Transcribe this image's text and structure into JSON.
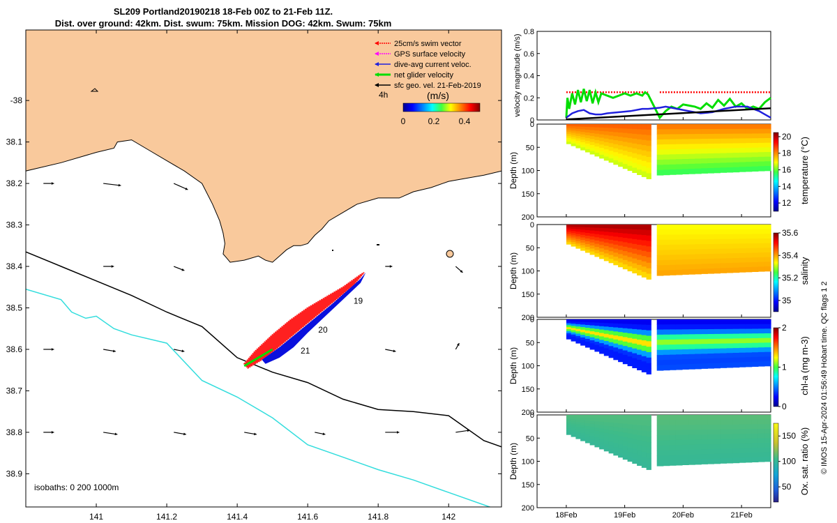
{
  "header": {
    "line1": "SL209 Portland20190218 18-Feb 00Z to 21-Feb 11Z.",
    "line2": "Dist. over ground: 42km. Dist. swum: 75km. Mission DOG: 42km. Swum: 75km"
  },
  "colors": {
    "land": "#f9c99c",
    "coast": "#000000",
    "isobath200": "#000000",
    "isobath1000": "#33dddd",
    "swim": "#ff0000",
    "gps": "#ff00ff",
    "diveavg": "#2020dd",
    "net": "#00dd00",
    "geo": "#000000",
    "track_red": "#ff2020",
    "track_blue": "#0a10dd"
  },
  "chart_data": [
    {
      "type": "map",
      "title": "Glider track map",
      "xlim": [
        140.8,
        142.15
      ],
      "ylim": [
        -38.98,
        -37.83
      ],
      "x_ticks": [
        141,
        141.2,
        141.4,
        141.6,
        141.8,
        142
      ],
      "x_tick_labels": [
        "141",
        "141.2",
        "141.4",
        "141.6",
        "141.8",
        "142"
      ],
      "y_ticks": [
        -38,
        -38.1,
        -38.2,
        -38.3,
        -38.4,
        -38.5,
        -38.6,
        -38.7,
        -38.8,
        -38.9
      ],
      "y_tick_labels": [
        "-38",
        "38.1",
        "38.2",
        "38.3",
        "38.4",
        "38.5",
        "38.6",
        "38.7",
        "38.8",
        "38.9"
      ],
      "legend": [
        {
          "label": "25cm/s swim vector",
          "color_key": "swim"
        },
        {
          "label": "GPS surface velocity",
          "color_key": "gps"
        },
        {
          "label": "dive-avg current veloc.",
          "color_key": "diveavg"
        },
        {
          "label": "net glider velocity",
          "color_key": "net"
        },
        {
          "label": "sfc geo. vel. 21-Feb-2019",
          "color_key": "geo"
        }
      ],
      "colorbar": {
        "prefix": "4h",
        "unit": "(m/s)",
        "ticks": [
          "0",
          "0.2",
          "0.4"
        ],
        "range": [
          0,
          0.5
        ]
      },
      "isobaths_label": "isobaths: 0   200  1000m",
      "day_labels": [
        {
          "text": "19",
          "lon": 141.73,
          "lat": -38.49
        },
        {
          "text": "20",
          "lon": 141.63,
          "lat": -38.56
        },
        {
          "text": "21",
          "lon": 141.58,
          "lat": -38.61
        }
      ],
      "coastline": [
        [
          140.8,
          -38.17
        ],
        [
          140.9,
          -38.15
        ],
        [
          141.0,
          -38.125
        ],
        [
          141.05,
          -38.115
        ],
        [
          141.06,
          -38.1
        ],
        [
          141.1,
          -38.095
        ],
        [
          141.15,
          -38.12
        ],
        [
          141.2,
          -38.145
        ],
        [
          141.25,
          -38.17
        ],
        [
          141.3,
          -38.2
        ],
        [
          141.33,
          -38.25
        ],
        [
          141.35,
          -38.29
        ],
        [
          141.36,
          -38.32
        ],
        [
          141.365,
          -38.345
        ],
        [
          141.36,
          -38.37
        ],
        [
          141.37,
          -38.38
        ],
        [
          141.38,
          -38.39
        ],
        [
          141.42,
          -38.385
        ],
        [
          141.46,
          -38.375
        ],
        [
          141.48,
          -38.385
        ],
        [
          141.5,
          -38.39
        ],
        [
          141.52,
          -38.375
        ],
        [
          141.54,
          -38.36
        ],
        [
          141.56,
          -38.35
        ],
        [
          141.58,
          -38.35
        ],
        [
          141.6,
          -38.345
        ],
        [
          141.62,
          -38.325
        ],
        [
          141.64,
          -38.31
        ],
        [
          141.66,
          -38.29
        ],
        [
          141.7,
          -38.27
        ],
        [
          141.74,
          -38.25
        ],
        [
          141.8,
          -38.235
        ],
        [
          141.86,
          -38.235
        ],
        [
          141.9,
          -38.22
        ],
        [
          141.95,
          -38.21
        ],
        [
          142.0,
          -38.195
        ],
        [
          142.1,
          -38.18
        ],
        [
          142.15,
          -38.17
        ]
      ],
      "isobath_200": [
        [
          140.8,
          -38.365
        ],
        [
          140.9,
          -38.4
        ],
        [
          141.0,
          -38.435
        ],
        [
          141.1,
          -38.47
        ],
        [
          141.2,
          -38.51
        ],
        [
          141.3,
          -38.545
        ],
        [
          141.4,
          -38.62
        ],
        [
          141.5,
          -38.655
        ],
        [
          141.6,
          -38.68
        ],
        [
          141.7,
          -38.72
        ],
        [
          141.8,
          -38.745
        ],
        [
          141.9,
          -38.75
        ],
        [
          142.0,
          -38.76
        ],
        [
          142.1,
          -38.82
        ],
        [
          142.15,
          -38.835
        ]
      ],
      "isobath_1000": [
        [
          140.8,
          -38.455
        ],
        [
          140.9,
          -38.48
        ],
        [
          140.93,
          -38.51
        ],
        [
          140.97,
          -38.525
        ],
        [
          141.0,
          -38.52
        ],
        [
          141.05,
          -38.55
        ],
        [
          141.1,
          -38.565
        ],
        [
          141.2,
          -38.585
        ],
        [
          141.3,
          -38.675
        ],
        [
          141.4,
          -38.715
        ],
        [
          141.5,
          -38.765
        ],
        [
          141.6,
          -38.83
        ],
        [
          141.7,
          -38.86
        ],
        [
          141.8,
          -38.89
        ],
        [
          141.9,
          -38.915
        ],
        [
          142.0,
          -38.945
        ],
        [
          142.1,
          -38.975
        ],
        [
          142.15,
          -38.99
        ]
      ],
      "track_red": [
        [
          141.42,
          -38.635
        ],
        [
          141.45,
          -38.605
        ],
        [
          141.5,
          -38.565
        ],
        [
          141.55,
          -38.53
        ],
        [
          141.6,
          -38.5
        ],
        [
          141.65,
          -38.475
        ],
        [
          141.7,
          -38.45
        ],
        [
          141.75,
          -38.42
        ],
        [
          141.76,
          -38.415
        ],
        [
          141.73,
          -38.445
        ],
        [
          141.68,
          -38.48
        ],
        [
          141.63,
          -38.515
        ],
        [
          141.58,
          -38.55
        ],
        [
          141.53,
          -38.585
        ],
        [
          141.48,
          -38.62
        ],
        [
          141.43,
          -38.645
        ]
      ],
      "track_blue": [
        [
          141.47,
          -38.625
        ],
        [
          141.52,
          -38.595
        ],
        [
          141.57,
          -38.56
        ],
        [
          141.62,
          -38.525
        ],
        [
          141.67,
          -38.49
        ],
        [
          141.71,
          -38.46
        ],
        [
          141.75,
          -38.43
        ],
        [
          141.765,
          -38.415
        ],
        [
          141.75,
          -38.44
        ],
        [
          141.7,
          -38.48
        ],
        [
          141.65,
          -38.52
        ],
        [
          141.6,
          -38.56
        ],
        [
          141.56,
          -38.595
        ],
        [
          141.52,
          -38.62
        ],
        [
          141.48,
          -38.635
        ]
      ],
      "track_green": [
        [
          141.42,
          -38.64
        ],
        [
          141.47,
          -38.615
        ],
        [
          141.5,
          -38.6
        ]
      ],
      "geo_arrows": [
        {
          "lon": 140.85,
          "lat": -38.2,
          "dlon": 0.03,
          "dlat": 0.0
        },
        {
          "lon": 141.02,
          "lat": -38.2,
          "dlon": 0.05,
          "dlat": -0.005
        },
        {
          "lon": 141.22,
          "lat": -38.2,
          "dlon": 0.04,
          "dlat": -0.015
        },
        {
          "lon": 141.02,
          "lat": -38.4,
          "dlon": 0.03,
          "dlat": 0.0
        },
        {
          "lon": 141.22,
          "lat": -38.4,
          "dlon": 0.03,
          "dlat": -0.01
        },
        {
          "lon": 141.82,
          "lat": -38.4,
          "dlon": 0.02,
          "dlat": 0.0
        },
        {
          "lon": 142.02,
          "lat": -38.4,
          "dlon": 0.02,
          "dlat": -0.015
        },
        {
          "lon": 140.85,
          "lat": -38.6,
          "dlon": 0.03,
          "dlat": 0.0
        },
        {
          "lon": 141.02,
          "lat": -38.6,
          "dlon": 0.035,
          "dlat": -0.005
        },
        {
          "lon": 141.22,
          "lat": -38.6,
          "dlon": 0.03,
          "dlat": -0.005
        },
        {
          "lon": 141.82,
          "lat": -38.6,
          "dlon": 0.03,
          "dlat": -0.005
        },
        {
          "lon": 142.02,
          "lat": -38.6,
          "dlon": 0.01,
          "dlat": 0.015
        },
        {
          "lon": 140.85,
          "lat": -38.8,
          "dlon": 0.03,
          "dlat": 0.0
        },
        {
          "lon": 141.02,
          "lat": -38.8,
          "dlon": 0.04,
          "dlat": -0.005
        },
        {
          "lon": 141.22,
          "lat": -38.8,
          "dlon": 0.035,
          "dlat": -0.005
        },
        {
          "lon": 141.42,
          "lat": -38.8,
          "dlon": 0.035,
          "dlat": -0.005
        },
        {
          "lon": 141.62,
          "lat": -38.8,
          "dlon": 0.03,
          "dlat": -0.005
        },
        {
          "lon": 141.82,
          "lat": -38.8,
          "dlon": 0.04,
          "dlat": 0.0
        },
        {
          "lon": 142.02,
          "lat": -38.8,
          "dlon": 0.04,
          "dlat": 0.005
        }
      ]
    },
    {
      "type": "line",
      "ylabel": "velocity magnitude (m/s)",
      "xlim": [
        0,
        4
      ],
      "ylim": [
        0,
        0.8
      ],
      "y_ticks": [
        0,
        0.2,
        0.4,
        0.6,
        0.8
      ],
      "y_tick_labels": [
        "0",
        "0.2",
        "0.4",
        "0.6",
        "0.8"
      ],
      "x_ticks": [
        0.5,
        1.5,
        2.5,
        3.5
      ],
      "x_tick_labels": [
        "18Feb",
        "19Feb",
        "20Feb",
        "21Feb"
      ],
      "series": [
        {
          "name": "swim",
          "color_key": "swim",
          "style": "dotted",
          "x": [
            0.5,
            1.9
          ],
          "y": [
            0.25,
            0.25
          ],
          "x2": [
            2.1,
            4.0
          ],
          "y2": [
            0.25,
            0.25
          ]
        },
        {
          "name": "net glider velocity",
          "color_key": "net",
          "x": [
            0.5,
            0.52,
            0.55,
            0.6,
            0.65,
            0.7,
            0.75,
            0.8,
            0.85,
            0.9,
            0.95,
            1.0,
            1.05,
            1.1,
            1.2,
            1.3,
            1.4,
            1.5,
            1.6,
            1.7,
            1.8,
            1.85,
            1.9,
            2.1,
            2.2,
            2.3,
            2.4,
            2.5,
            2.6,
            2.7,
            2.8,
            2.9,
            3.0,
            3.1,
            3.2,
            3.3,
            3.4,
            3.5,
            3.6,
            3.7,
            3.8,
            3.9,
            4.0
          ],
          "y": [
            0.02,
            0.2,
            0.1,
            0.24,
            0.14,
            0.27,
            0.16,
            0.28,
            0.17,
            0.27,
            0.15,
            0.25,
            0.16,
            0.24,
            0.22,
            0.2,
            0.22,
            0.24,
            0.22,
            0.24,
            0.22,
            0.25,
            0.23,
            0.02,
            0.08,
            0.12,
            0.1,
            0.14,
            0.13,
            0.12,
            0.1,
            0.15,
            0.11,
            0.18,
            0.13,
            0.19,
            0.12,
            0.15,
            0.1,
            0.12,
            0.1,
            0.16,
            0.2
          ]
        },
        {
          "name": "dive-avg current",
          "color_key": "diveavg",
          "x": [
            0.5,
            0.6,
            0.7,
            0.8,
            0.9,
            1.0,
            1.1,
            1.2,
            1.4,
            1.6,
            1.8,
            1.9,
            2.1,
            2.2,
            2.4,
            2.6,
            2.8,
            3.0,
            3.2,
            3.4,
            3.6,
            3.8,
            3.9,
            4.0
          ],
          "y": [
            0.02,
            0.06,
            0.08,
            0.09,
            0.06,
            0.05,
            0.05,
            0.06,
            0.07,
            0.08,
            0.1,
            0.1,
            0.11,
            0.12,
            0.1,
            0.08,
            0.06,
            0.07,
            0.1,
            0.12,
            0.12,
            0.08,
            0.05,
            0.02
          ]
        },
        {
          "name": "sfc geo velocity",
          "color_key": "geo",
          "x": [
            0.5,
            4.0
          ],
          "y": [
            0.005,
            0.105
          ]
        }
      ]
    },
    {
      "type": "heatmap",
      "variable": "temperature",
      "colorbar_label": "temperature (°C)",
      "ylabel": "Depth (m)",
      "ylim": [
        200,
        0
      ],
      "y_ticks": [
        "0",
        "50",
        "100",
        "150",
        "200"
      ],
      "cbar_range": [
        11,
        20.5
      ],
      "cbar_ticks": [
        "12",
        "14",
        "16",
        "18",
        "20"
      ],
      "segment1": {
        "x": [
          0.5,
          1.95
        ],
        "max_depth_start": 40,
        "max_depth_end": 120,
        "surface_value": 18.5,
        "bottom_value": 16.5
      },
      "segment2": {
        "x": [
          2.05,
          4.0
        ],
        "max_depth_start": 110,
        "max_depth_end": 100,
        "surface_value": 18.3,
        "bottom_value": 15.5
      }
    },
    {
      "type": "heatmap",
      "variable": "salinity",
      "colorbar_label": "salinity",
      "ylabel": "Depth (m)",
      "ylim": [
        200,
        0
      ],
      "y_ticks": [
        "0",
        "50",
        "100",
        "150",
        "200"
      ],
      "cbar_range": [
        34.9,
        35.6
      ],
      "cbar_ticks": [
        "35",
        "35.2",
        "35.4",
        "35.6"
      ],
      "segment1": {
        "x": [
          0.5,
          1.95
        ],
        "max_depth_start": 40,
        "max_depth_end": 120,
        "surface_value": 35.58,
        "bottom_value": 35.35
      },
      "segment2": {
        "x": [
          2.05,
          4.0
        ],
        "max_depth_start": 110,
        "max_depth_end": 100,
        "surface_value": 35.33,
        "bottom_value": 35.4
      }
    },
    {
      "type": "heatmap",
      "variable": "chl-a",
      "colorbar_label": "chl-a (mg m-3)",
      "ylabel": "Depth (m)",
      "ylim": [
        200,
        0
      ],
      "y_ticks": [
        "0",
        "50",
        "100",
        "150",
        "200"
      ],
      "cbar_range": [
        0,
        2
      ],
      "cbar_ticks": [
        "0",
        "1",
        "2"
      ],
      "segment1": {
        "x": [
          0.5,
          1.95
        ],
        "max_depth_start": 40,
        "max_depth_end": 120,
        "surface_value": 0.2,
        "bottom_value": 0.3,
        "peak_value": 1.3
      },
      "segment2": {
        "x": [
          2.05,
          4.0
        ],
        "max_depth_start": 110,
        "max_depth_end": 100,
        "surface_value": 0.2,
        "bottom_value": 0.4,
        "peak_value": 1.1
      }
    },
    {
      "type": "heatmap",
      "variable": "oxygen saturation",
      "colorbar_label": "Ox. sat. ratio (%)",
      "ylabel": "Depth (m)",
      "ylim": [
        200,
        0
      ],
      "y_ticks": [
        "0",
        "50",
        "100",
        "150",
        "200"
      ],
      "x_tick_labels": [
        "18Feb",
        "19Feb",
        "20Feb",
        "21Feb"
      ],
      "cbar_range": [
        20,
        175
      ],
      "cbar_ticks": [
        "50",
        "100",
        "150"
      ],
      "segment1": {
        "x": [
          0.5,
          1.95
        ],
        "max_depth_start": 40,
        "max_depth_end": 120,
        "surface_value": 110,
        "bottom_value": 100
      },
      "segment2": {
        "x": [
          2.05,
          4.0
        ],
        "max_depth_start": 110,
        "max_depth_end": 100,
        "surface_value": 112,
        "bottom_value": 100
      }
    }
  ],
  "side_note": "© IMOS 15-Apr-2024 01:56:49 Hobart time. QC flags 1  2"
}
